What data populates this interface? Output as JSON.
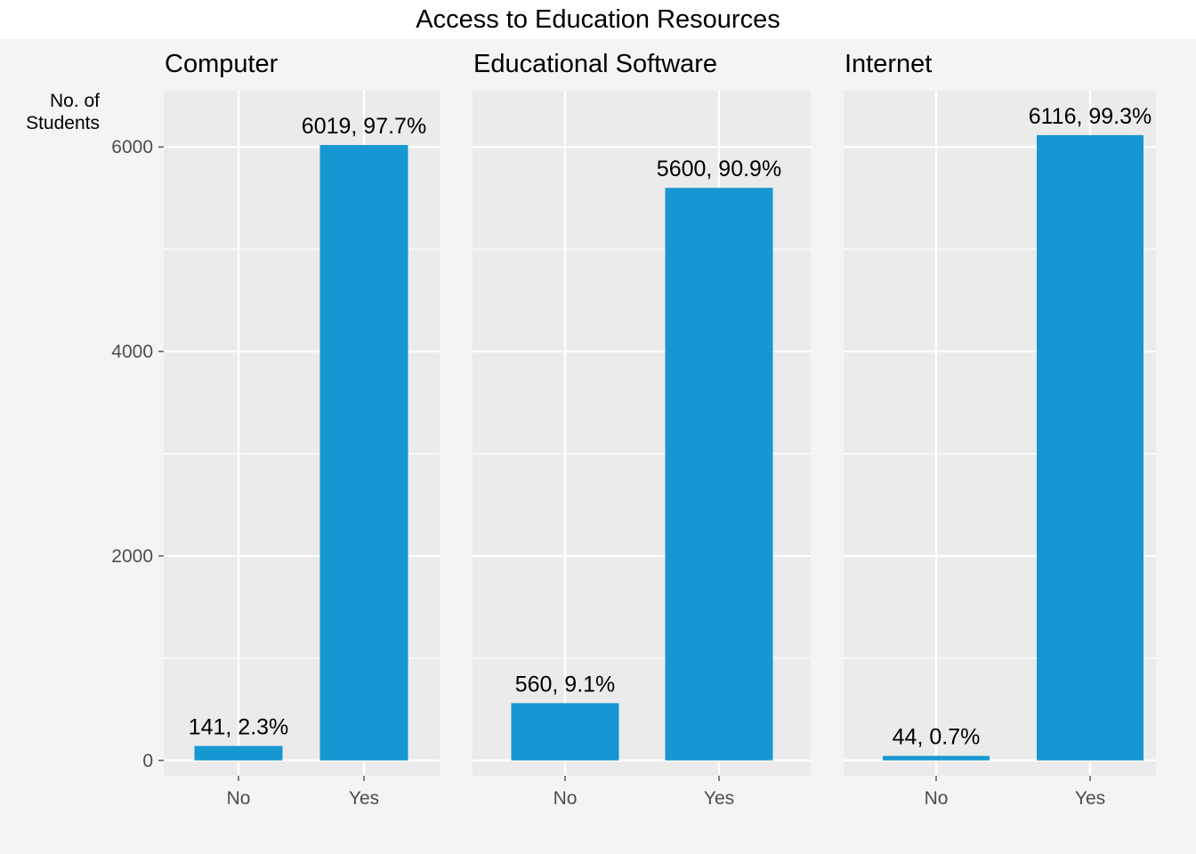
{
  "chart_data": {
    "type": "bar",
    "title": "Access to Education Resources",
    "ylabel_lines": [
      "No. of",
      "Students"
    ],
    "categories": [
      "No",
      "Yes"
    ],
    "ylim": [
      -150,
      6550
    ],
    "yticks": [
      0,
      2000,
      4000,
      6000
    ],
    "grid": true,
    "bar_color": "#1797d2",
    "panel_color": "#ebebeb",
    "facets": [
      {
        "title": "Computer",
        "values": [
          141,
          6019
        ],
        "labels": [
          "141, 2.3%",
          "6019, 97.7%"
        ]
      },
      {
        "title": "Educational Software",
        "values": [
          560,
          5600
        ],
        "labels": [
          "560, 9.1%",
          "5600, 90.9%"
        ]
      },
      {
        "title": "Internet",
        "values": [
          44,
          6116
        ],
        "labels": [
          "44, 0.7%",
          "6116, 99.3%"
        ]
      }
    ]
  }
}
